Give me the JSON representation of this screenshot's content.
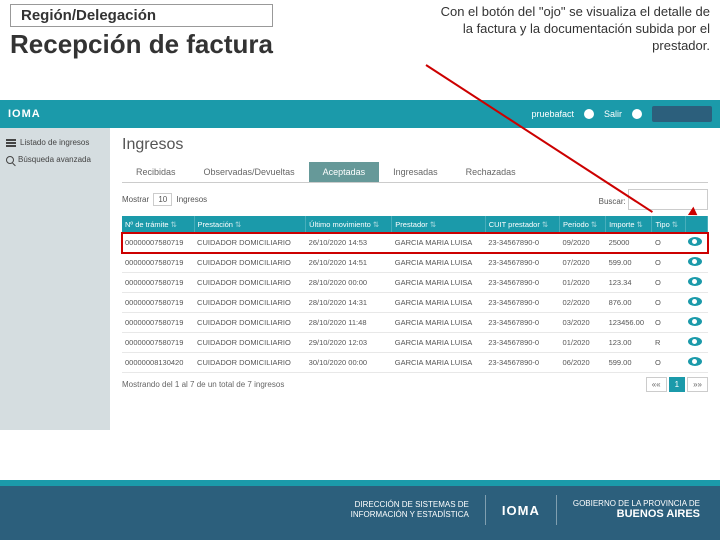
{
  "slide": {
    "region_label": "Región/Delegación",
    "main_title": "Recepción de factura",
    "callout": "Con el botón del \"ojo\" se visualiza el detalle de la factura y la documentación subida por el prestador."
  },
  "topbar": {
    "logo": "IOMA",
    "user": "pruebafact",
    "exit": "Salir"
  },
  "sidebar": {
    "items": [
      {
        "label": "Listado de ingresos"
      },
      {
        "label": "Búsqueda avanzada"
      }
    ]
  },
  "page": {
    "title": "Ingresos"
  },
  "tabs": [
    {
      "label": "Recibidas",
      "active": false
    },
    {
      "label": "Observadas/Devueltas",
      "active": false
    },
    {
      "label": "Aceptadas",
      "active": true
    },
    {
      "label": "Ingresadas",
      "active": false
    },
    {
      "label": "Rechazadas",
      "active": false
    }
  ],
  "controls": {
    "show_label_pre": "Mostrar",
    "show_value": "10",
    "show_label_post": "Ingresos",
    "search_label": "Buscar:"
  },
  "table": {
    "columns": [
      "Nº de trámite",
      "Prestación",
      "Último movimiento",
      "Prestador",
      "CUIT prestador",
      "Periodo",
      "Importe",
      "Tipo",
      ""
    ],
    "rows": [
      [
        "00000007580719",
        "CUIDADOR DOMICILIARIO",
        "26/10/2020 14:53",
        "GARCIA MARIA LUISA",
        "23-34567890-0",
        "09/2020",
        "25000",
        "O"
      ],
      [
        "00000007580719",
        "CUIDADOR DOMICILIARIO",
        "26/10/2020 14:51",
        "GARCIA MARIA LUISA",
        "23-34567890-0",
        "07/2020",
        "599.00",
        "O"
      ],
      [
        "00000007580719",
        "CUIDADOR DOMICILIARIO",
        "28/10/2020 00:00",
        "GARCIA MARIA LUISA",
        "23-34567890-0",
        "01/2020",
        "123.34",
        "O"
      ],
      [
        "00000007580719",
        "CUIDADOR DOMICILIARIO",
        "28/10/2020 14:31",
        "GARCIA MARIA LUISA",
        "23-34567890-0",
        "02/2020",
        "876.00",
        "O"
      ],
      [
        "00000007580719",
        "CUIDADOR DOMICILIARIO",
        "28/10/2020 11:48",
        "GARCIA MARIA LUISA",
        "23-34567890-0",
        "03/2020",
        "123456.00",
        "O"
      ],
      [
        "00000007580719",
        "CUIDADOR DOMICILIARIO",
        "29/10/2020 12:03",
        "GARCIA MARIA LUISA",
        "23-34567890-0",
        "01/2020",
        "123.00",
        "R"
      ],
      [
        "00000008130420",
        "CUIDADOR DOMICILIARIO",
        "30/10/2020 00:00",
        "GARCIA MARIA LUISA",
        "23-34567890-0",
        "06/2020",
        "599.00",
        "O"
      ]
    ]
  },
  "footer_table": {
    "summary": "Mostrando del 1 al 7 de un total de 7 ingresos",
    "page": "1"
  },
  "footer_banner": {
    "dept1_line1": "DIRECCIÓN DE SISTEMAS DE",
    "dept1_line2": "INFORMACIÓN Y ESTADÍSTICA",
    "logo": "IOMA",
    "gov_line1": "GOBIERNO DE LA PROVINCIA DE",
    "gov_line2": "BUENOS AIRES"
  }
}
